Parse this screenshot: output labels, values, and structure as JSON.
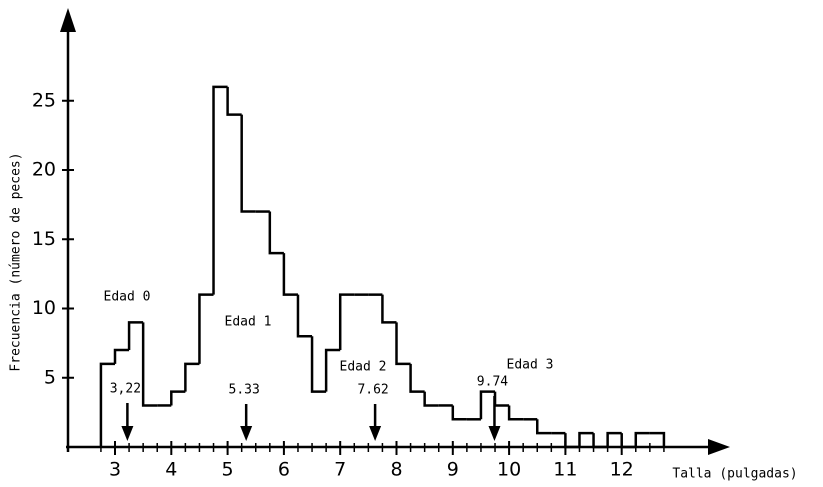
{
  "chart_data": {
    "type": "histogram",
    "y_label": "Frecuencia (número de peces)",
    "x_label": "Talla (pulgadas)",
    "bins": [
      2.75,
      3,
      3.25,
      3.5,
      3.75,
      4,
      4.25,
      4.5,
      4.75,
      5,
      5.25,
      5.5,
      5.75,
      6,
      6.25,
      6.5,
      6.75,
      7,
      7.25,
      7.5,
      7.75,
      8,
      8.25,
      8.5,
      8.75,
      9,
      9.25,
      9.5,
      9.75,
      10,
      10.25,
      10.5,
      10.75,
      11,
      11.25,
      11.5,
      11.75,
      12,
      12.25,
      12.5,
      12.75
    ],
    "values": [
      6,
      7,
      9,
      3,
      3,
      4,
      6,
      11,
      26,
      24,
      17,
      17,
      14,
      11,
      8,
      4,
      7,
      11,
      11,
      11,
      9,
      6,
      4,
      3,
      3,
      2,
      2,
      4,
      3,
      2,
      2,
      1,
      1,
      0,
      1,
      0,
      1,
      0,
      1,
      1
    ],
    "color": "#000000",
    "xlim": [
      2.1,
      13.8
    ],
    "ylim": [
      0,
      31.5
    ],
    "xticks": [
      3,
      4,
      5,
      6,
      7,
      8,
      9,
      10,
      11,
      12
    ],
    "yticks": [
      5,
      10,
      15,
      20,
      25
    ],
    "group_labels": [
      "Edad 0",
      "Edad 1",
      "Edad 2",
      "Edad 3"
    ],
    "annotations": [
      {
        "value": 3.22,
        "label": "3,22"
      },
      {
        "value": 5.33,
        "label": "5.33"
      },
      {
        "value": 7.62,
        "label": "7.62"
      },
      {
        "value": 9.74,
        "label": "9.74"
      }
    ]
  }
}
